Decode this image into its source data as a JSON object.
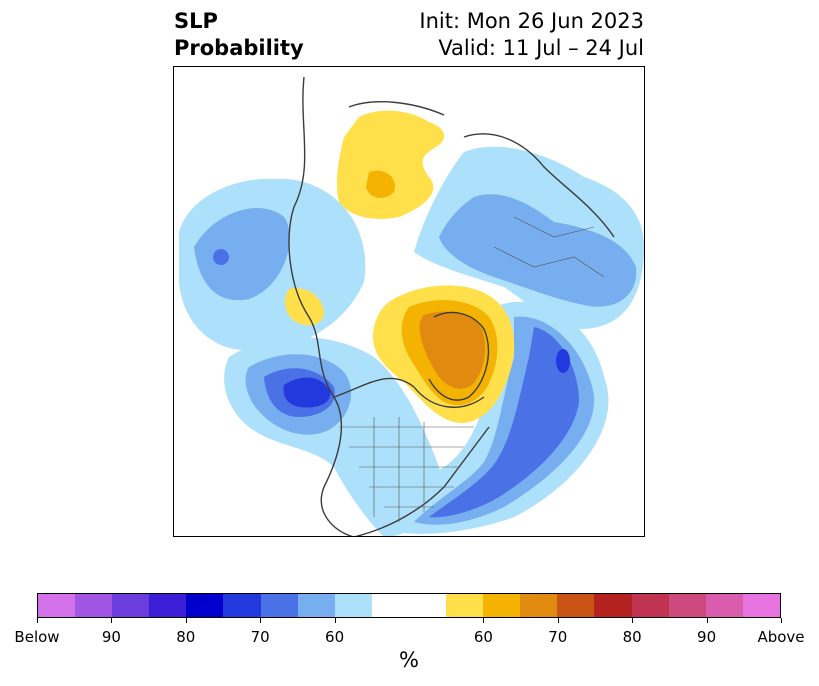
{
  "title": {
    "left_line1": "SLP",
    "left_line2": "Probability",
    "right_line1": "Init: Mon 26 Jun 2023",
    "right_line2": "Valid: 11 Jul – 24 Jul"
  },
  "colorbar": {
    "colors": [
      "#d371eb",
      "#a055e3",
      "#6a3ddc",
      "#3c1ed7",
      "#0000cd",
      "#2139dd",
      "#4a72e6",
      "#76aef0",
      "#ade0fa",
      "#ffffff",
      "#ffffff",
      "#ffe04a",
      "#f3b300",
      "#e08a10",
      "#c85515",
      "#b3221e",
      "#c03350",
      "#cc4a7e",
      "#da5cac",
      "#e773e0"
    ],
    "tick_labels": [
      "Below",
      "90",
      "80",
      "70",
      "60",
      "60",
      "70",
      "80",
      "90",
      "Above"
    ],
    "unit_label": "%"
  }
}
